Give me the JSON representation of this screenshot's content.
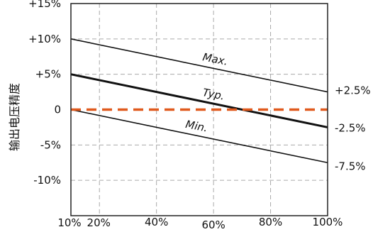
{
  "chart_data": {
    "type": "line",
    "ylabel": "输出电压精度",
    "xlabel": "",
    "x_ticks": [
      "10%",
      "20%",
      "40%",
      "60%",
      "80%",
      "100%"
    ],
    "y_ticks": [
      "+15%",
      "+10%",
      "+5%",
      "0",
      "-5%",
      "-10%"
    ],
    "xlim": [
      10,
      100
    ],
    "ylim": [
      -15,
      15
    ],
    "grid": true,
    "series": [
      {
        "name": "Max.",
        "x": [
          10,
          100
        ],
        "y": [
          10,
          2.5
        ],
        "style": "thin"
      },
      {
        "name": "Typ.",
        "x": [
          10,
          100
        ],
        "y": [
          5,
          -2.5
        ],
        "style": "bold"
      },
      {
        "name": "Min.",
        "x": [
          10,
          100
        ],
        "y": [
          0,
          -7.5
        ],
        "style": "thin"
      },
      {
        "name": "",
        "x": [
          10,
          100
        ],
        "y": [
          0,
          0
        ],
        "style": "dashed"
      }
    ],
    "end_labels": [
      "+2.5%",
      "-2.5%",
      "-7.5%"
    ],
    "colors": {
      "lines": "#111111",
      "reference": "#e05a1e",
      "grid": "#aaaaaa"
    }
  }
}
